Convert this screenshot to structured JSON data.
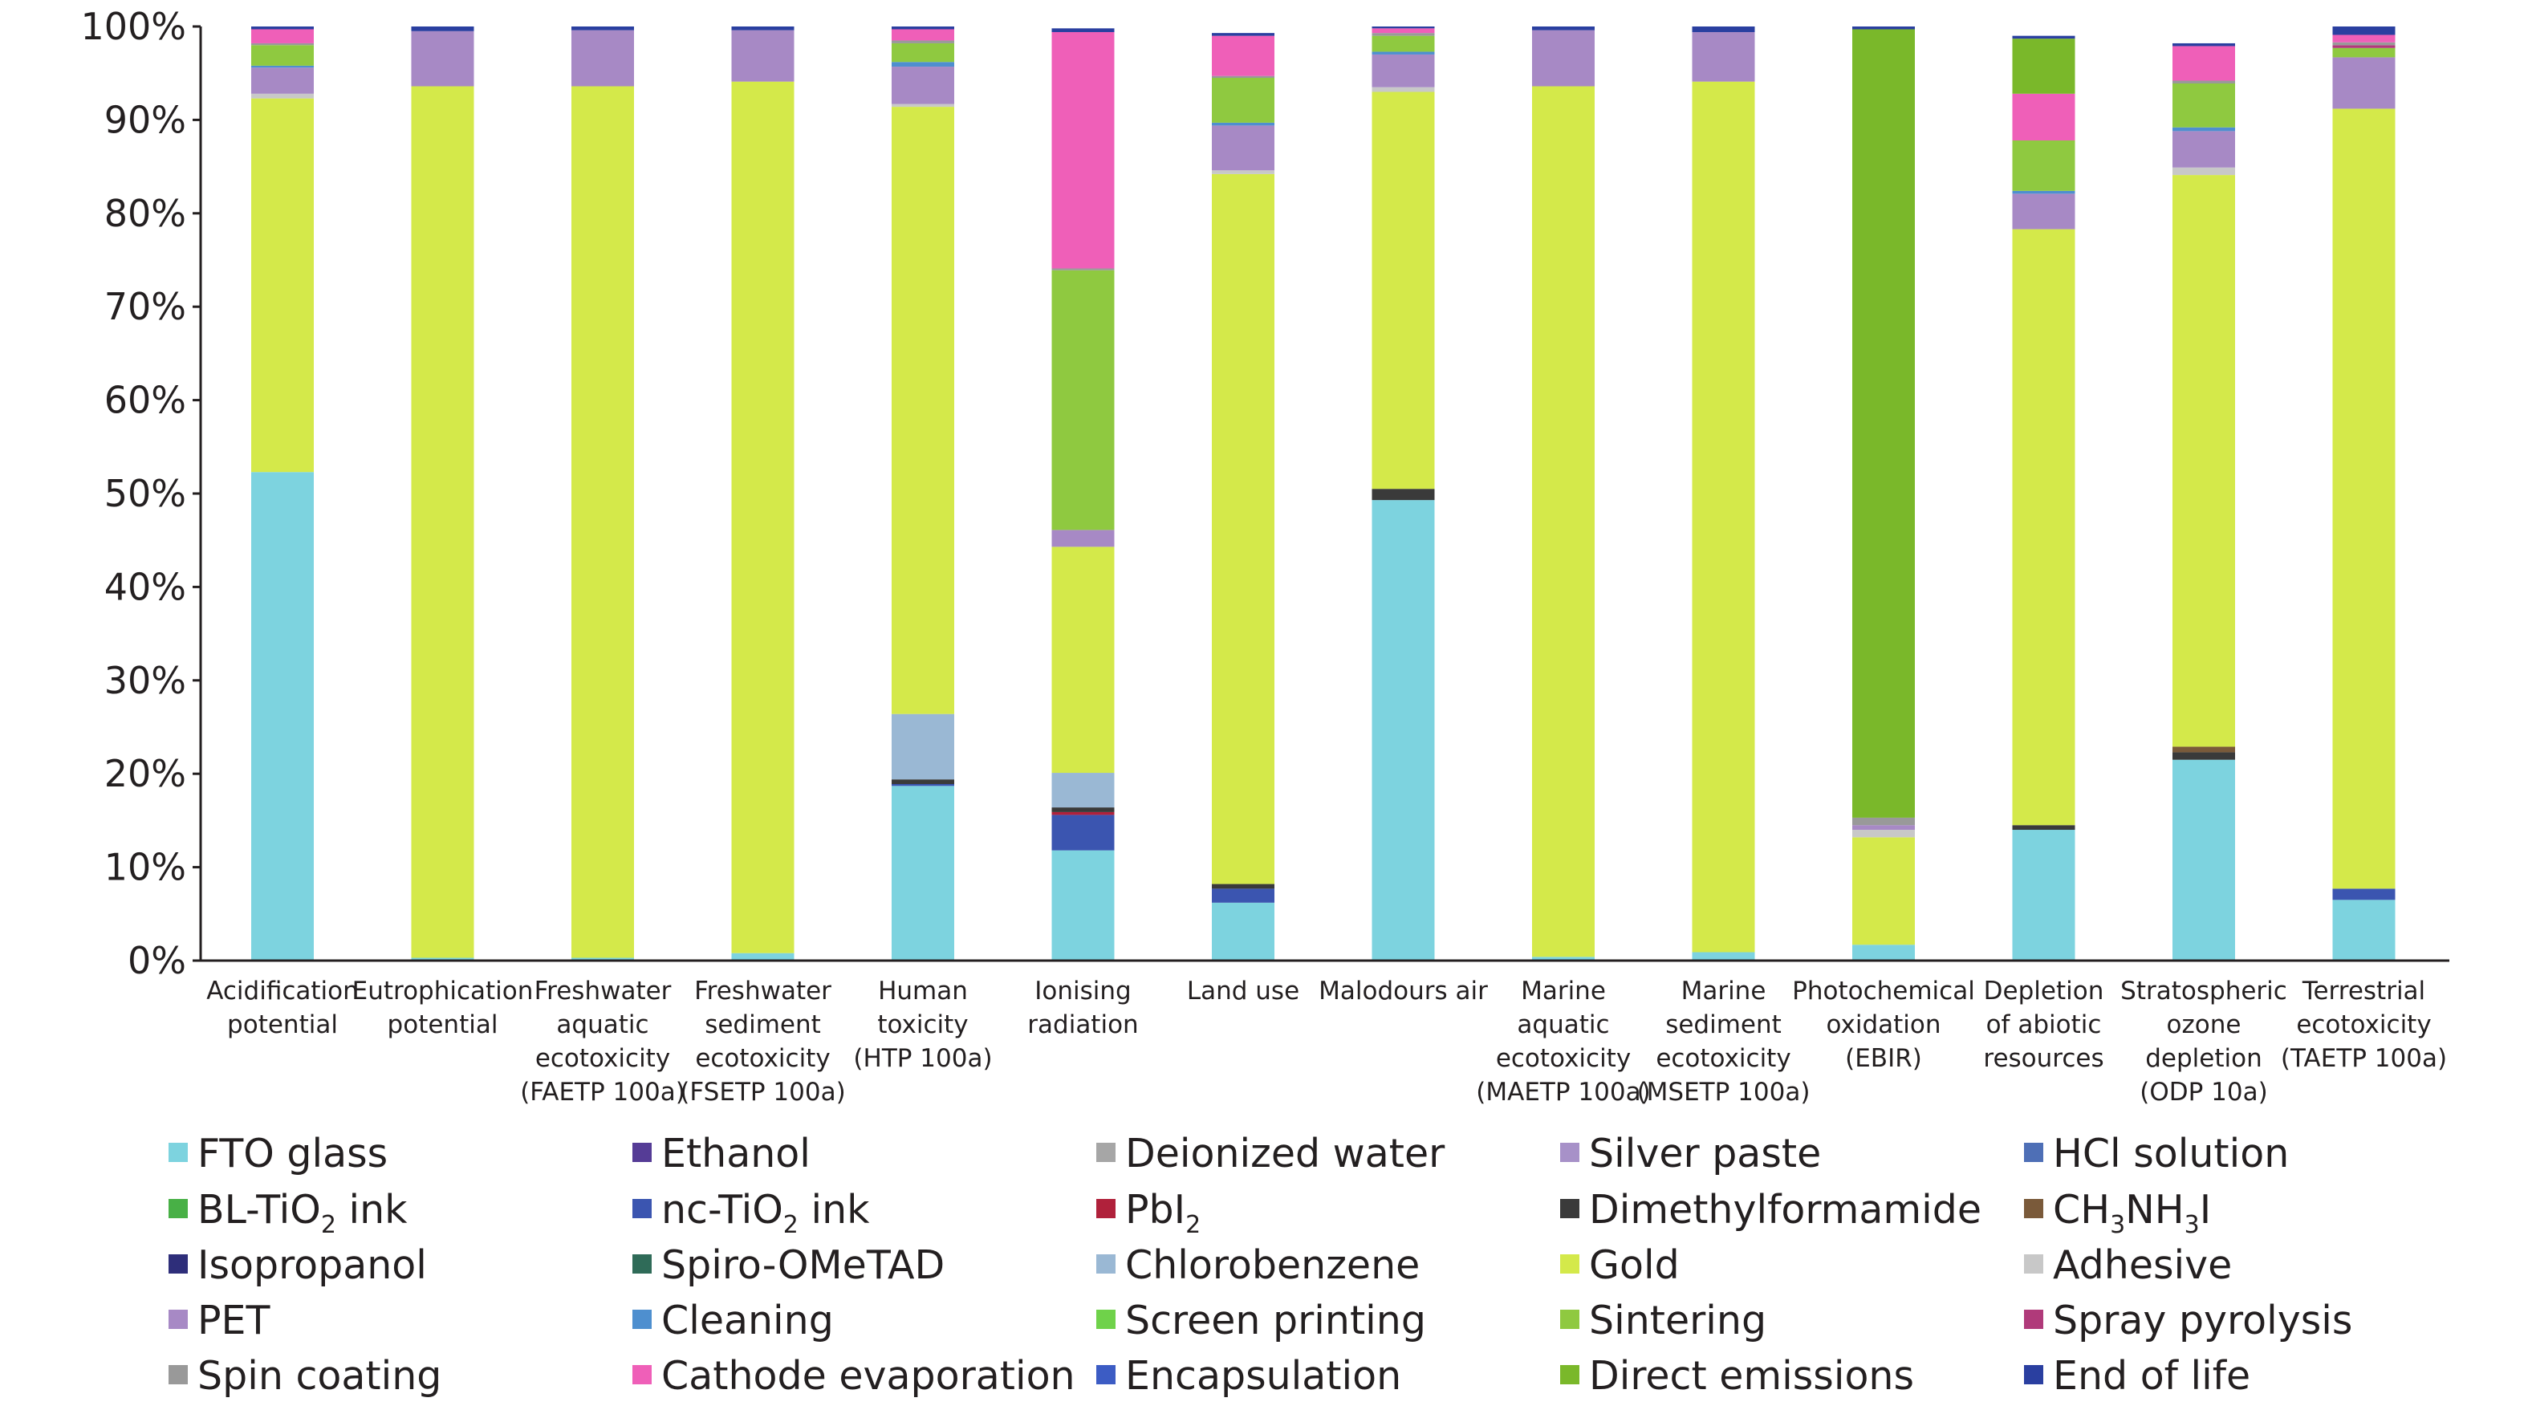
{
  "chart_data": {
    "type": "bar",
    "stacked": true,
    "ylim": [
      0,
      100
    ],
    "y_tick_labels": [
      "0%",
      "10%",
      "20%",
      "30%",
      "40%",
      "50%",
      "60%",
      "70%",
      "80%",
      "90%",
      "100%"
    ],
    "grid": false,
    "legend_placement": "bottom",
    "categories": [
      [
        "Acidification",
        "potential"
      ],
      [
        "Eutrophication",
        "potential"
      ],
      [
        "Freshwater",
        "aquatic",
        "ecotoxicity",
        "(FAETP 100a)"
      ],
      [
        "Freshwater",
        "sediment",
        "ecotoxicity",
        "(FSETP 100a)"
      ],
      [
        "Human",
        "toxicity",
        "(HTP 100a)"
      ],
      [
        "Ionising",
        "radiation"
      ],
      [
        "Land use"
      ],
      [
        "Malodours air"
      ],
      [
        "Marine",
        "aquatic",
        "ecotoxicity",
        "(MAETP 100a)"
      ],
      [
        "Marine",
        "sediment",
        "ecotoxicity",
        "(MSETP 100a)"
      ],
      [
        "Photochemical",
        "oxidation",
        "(EBIR)"
      ],
      [
        "Depletion",
        "of abiotic",
        "resources"
      ],
      [
        "Stratospheric",
        "ozone",
        "depletion",
        "(ODP 10a)"
      ],
      [
        "Terrestrial",
        "ecotoxicity",
        "(TAETP 100a)"
      ]
    ],
    "series": [
      {
        "name": "FTO glass",
        "color": "#7dd3df",
        "values": [
          52.3,
          0.3,
          0.3,
          0.8,
          18.7,
          11.8,
          6.2,
          49.3,
          0.4,
          0.9,
          1.7,
          14,
          21.5,
          6.5
        ]
      },
      {
        "name": "Ethanol",
        "color": "#553c96",
        "values": [
          0,
          0,
          0,
          0,
          0,
          0,
          0,
          0,
          0,
          0,
          0,
          0,
          0,
          0
        ]
      },
      {
        "name": "Deionized water",
        "color": "#a6a6a6",
        "values": [
          0,
          0,
          0,
          0,
          0,
          0,
          0,
          0,
          0,
          0,
          0,
          0,
          0,
          0
        ]
      },
      {
        "name": "Silver paste",
        "color": "#a791c8",
        "values": [
          0,
          0,
          0,
          0,
          0,
          0,
          0,
          0,
          0,
          0,
          0,
          0,
          0,
          0
        ]
      },
      {
        "name": "HCl solution",
        "color": "#4e6fb6",
        "values": [
          0,
          0,
          0,
          0,
          0,
          0,
          0,
          0,
          0,
          0,
          0,
          0,
          0,
          0
        ]
      },
      {
        "name": "BL-TiO2 ink",
        "color": "#48b046",
        "values": [
          0,
          0,
          0,
          0,
          0,
          0,
          0,
          0,
          0,
          0,
          0,
          0,
          0,
          0
        ]
      },
      {
        "name": "nc-TiO2 ink",
        "color": "#3b55b0",
        "values": [
          0,
          0,
          0,
          0,
          0.2,
          3.8,
          1.5,
          0,
          0,
          0,
          0,
          0,
          0,
          1.2
        ]
      },
      {
        "name": "PbI2",
        "color": "#b0213b",
        "values": [
          0,
          0,
          0,
          0,
          0,
          0.3,
          0,
          0,
          0,
          0,
          0,
          0,
          0,
          0
        ]
      },
      {
        "name": "Dimethylformamide",
        "color": "#3a3a3a",
        "values": [
          0,
          0,
          0,
          0,
          0.5,
          0.5,
          0.5,
          1.2,
          0,
          0,
          0,
          0.5,
          0.8,
          0
        ]
      },
      {
        "name": "CH3NH3I",
        "color": "#7a5a3a",
        "values": [
          0,
          0,
          0,
          0,
          0,
          0,
          0,
          0,
          0,
          0,
          0,
          0,
          0.6,
          0
        ]
      },
      {
        "name": "Isopropanol",
        "color": "#2e2e7a",
        "values": [
          0,
          0,
          0,
          0,
          0,
          0,
          0,
          0,
          0,
          0,
          0,
          0,
          0,
          0
        ]
      },
      {
        "name": "Spiro-OMeTAD",
        "color": "#2f6b58",
        "values": [
          0,
          0,
          0,
          0,
          0,
          0,
          0,
          0,
          0,
          0,
          0,
          0,
          0,
          0
        ]
      },
      {
        "name": "Chlorobenzene",
        "color": "#9ab8d4",
        "values": [
          0,
          0,
          0,
          0,
          7,
          3.7,
          0,
          0,
          0,
          0,
          0,
          0,
          0,
          0
        ]
      },
      {
        "name": "Gold",
        "color": "#d4e94a",
        "values": [
          40,
          93.3,
          93.3,
          93.3,
          65,
          24.2,
          76,
          42.5,
          93.2,
          93.2,
          11.5,
          63.8,
          61.2,
          83.5
        ]
      },
      {
        "name": "Adhesive",
        "color": "#c8c8c8",
        "values": [
          0.5,
          0,
          0,
          0,
          0.3,
          0,
          0.4,
          0.5,
          0,
          0,
          0.8,
          0,
          0.8,
          0
        ]
      },
      {
        "name": "PET",
        "color": "#a789c5",
        "values": [
          2.8,
          5.9,
          6,
          5.5,
          4,
          1.8,
          4.8,
          3.5,
          6,
          5.3,
          0.5,
          3.8,
          3.9,
          5.5
        ]
      },
      {
        "name": "Cleaning",
        "color": "#4e8fcf",
        "values": [
          0.2,
          0,
          0,
          0,
          0.5,
          0,
          0.3,
          0.3,
          0,
          0,
          0,
          0.3,
          0.4,
          0
        ]
      },
      {
        "name": "Screen printing",
        "color": "#6fd24a",
        "values": [
          0,
          0,
          0,
          0,
          0,
          0,
          0,
          0,
          0,
          0,
          0,
          0,
          0,
          0
        ]
      },
      {
        "name": "Sintering",
        "color": "#8fc940",
        "values": [
          2.2,
          0,
          0,
          0,
          2,
          27.8,
          4.8,
          1.7,
          0,
          0,
          0,
          5.4,
          4.7,
          1
        ]
      },
      {
        "name": "Spray pyrolysis",
        "color": "#b03a7a",
        "values": [
          0,
          0,
          0,
          0,
          0,
          0,
          0,
          0,
          0,
          0,
          0,
          0,
          0,
          0.3
        ]
      },
      {
        "name": "Spin coating",
        "color": "#999999",
        "values": [
          0.2,
          0,
          0,
          0,
          0.3,
          0.2,
          0.2,
          0.3,
          0,
          0,
          0.8,
          0,
          0.3,
          0.3
        ]
      },
      {
        "name": "Cathode evaporation",
        "color": "#ef5fb8",
        "values": [
          1.5,
          0,
          0,
          0,
          1.2,
          25.3,
          4.3,
          0.5,
          0,
          0,
          0,
          5,
          3.7,
          0.8
        ]
      },
      {
        "name": "Encapsulation",
        "color": "#3c5cc4",
        "values": [
          0,
          0,
          0,
          0,
          0,
          0,
          0,
          0,
          0,
          0,
          0,
          0,
          0,
          0
        ]
      },
      {
        "name": "Direct emissions",
        "color": "#7ab82a",
        "values": [
          0,
          0,
          0,
          0,
          0,
          0,
          0,
          0,
          0,
          0,
          84.4,
          5.9,
          0,
          0
        ]
      },
      {
        "name": "End of life",
        "color": "#2a3fa0",
        "values": [
          0.3,
          0.5,
          0.4,
          0.4,
          0.3,
          0.4,
          0.3,
          0.2,
          0.4,
          0.6,
          0.3,
          0.3,
          0.3,
          0.9
        ]
      }
    ],
    "legend": {
      "entries": [
        {
          "text": "FTO glass",
          "color": "#7dd3df"
        },
        {
          "text": "Ethanol",
          "color": "#553c96"
        },
        {
          "text": "Deionized water",
          "color": "#a6a6a6"
        },
        {
          "text": "Silver paste",
          "color": "#a791c8"
        },
        {
          "text": "HCl solution",
          "color": "#4e6fb6"
        },
        {
          "text": "BL-TiO",
          "sub": "2",
          "after": " ink",
          "color": "#48b046"
        },
        {
          "text": "nc-TiO",
          "sub": "2",
          "after": " ink",
          "color": "#3b55b0"
        },
        {
          "text": "PbI",
          "sub": "2",
          "after": "",
          "color": "#b0213b"
        },
        {
          "text": "Dimethylformamide",
          "color": "#3a3a3a"
        },
        {
          "text": "CH",
          "sub": "3",
          "after": "NH",
          "sub2": "3",
          "after2": "I",
          "color": "#7a5a3a"
        },
        {
          "text": "Isopropanol",
          "color": "#2e2e7a"
        },
        {
          "text": "Spiro-OMeTAD",
          "color": "#2f6b58"
        },
        {
          "text": "Chlorobenzene",
          "color": "#9ab8d4"
        },
        {
          "text": "Gold",
          "color": "#d4e94a"
        },
        {
          "text": "Adhesive",
          "color": "#c8c8c8"
        },
        {
          "text": "PET",
          "color": "#a789c5"
        },
        {
          "text": "Cleaning",
          "color": "#4e8fcf"
        },
        {
          "text": "Screen printing",
          "color": "#6fd24a"
        },
        {
          "text": "Sintering",
          "color": "#8fc940"
        },
        {
          "text": "Spray pyrolysis",
          "color": "#b03a7a"
        },
        {
          "text": "Spin coating",
          "color": "#999999"
        },
        {
          "text": "Cathode evaporation",
          "color": "#ef5fb8"
        },
        {
          "text": "Encapsulation",
          "color": "#3c5cc4"
        },
        {
          "text": "Direct emissions",
          "color": "#7ab82a"
        },
        {
          "text": "End of life",
          "color": "#2a3fa0"
        }
      ]
    }
  }
}
